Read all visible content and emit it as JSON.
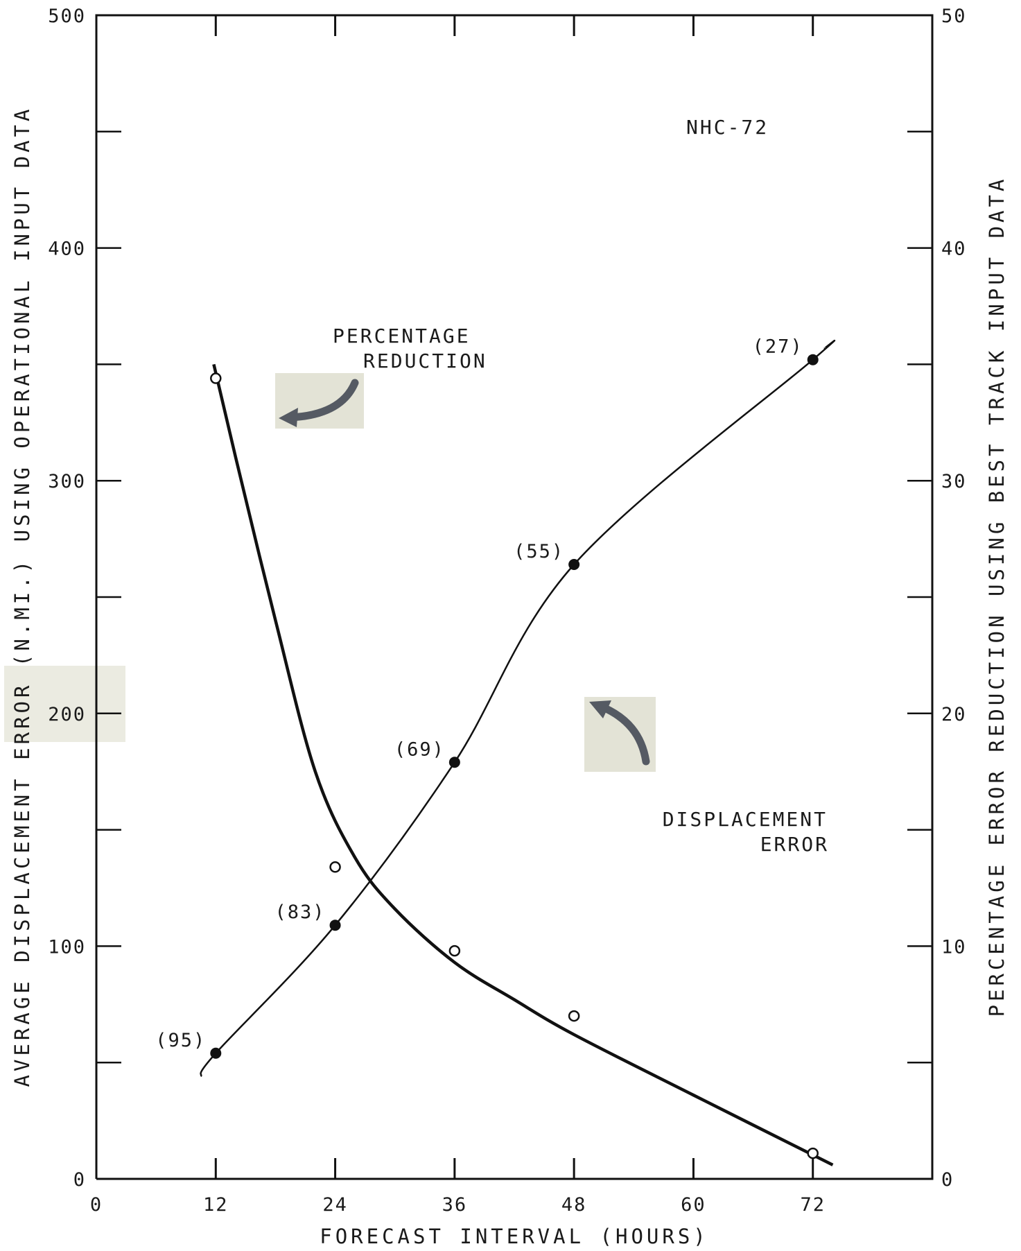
{
  "chart_data": {
    "type": "line",
    "title": "NHC-72",
    "xlabel": "FORECAST INTERVAL (HOURS)",
    "ylabel_left": "AVERAGE DISPLACEMENT ERROR (N.MI.) USING OPERATIONAL INPUT DATA",
    "ylabel_right": "PERCENTAGE ERROR REDUCTION USING BEST TRACK INPUT DATA",
    "xlim": [
      0,
      84
    ],
    "ylim_left": [
      0,
      500
    ],
    "ylim_right": [
      0,
      50
    ],
    "x_ticks": [
      0,
      12,
      24,
      36,
      48,
      60,
      72
    ],
    "y_ticks_left": [
      0,
      100,
      200,
      300,
      400,
      500
    ],
    "y_ticks_right": [
      0,
      10,
      20,
      30,
      40,
      50
    ],
    "grid": false,
    "series": [
      {
        "name": "DISPLACEMENT ERROR",
        "axis": "left",
        "marker": "filled",
        "x": [
          12,
          24,
          36,
          48,
          72
        ],
        "y": [
          54,
          109,
          179,
          264,
          352
        ],
        "case_counts": [
          "(95)",
          "(83)",
          "(69)",
          "(55)",
          "(27)"
        ]
      },
      {
        "name": "PERCENTAGE REDUCTION",
        "axis": "right",
        "marker": "open",
        "x": [
          12,
          24,
          36,
          48,
          72
        ],
        "y": [
          34.4,
          13.4,
          9.8,
          7.0,
          1.1
        ]
      }
    ],
    "annotations": {
      "label_top": "NHC-72",
      "pct_line1": "PERCENTAGE",
      "pct_line2": "REDUCTION",
      "disp_line1": "DISPLACEMENT",
      "disp_line2": "ERROR"
    }
  }
}
